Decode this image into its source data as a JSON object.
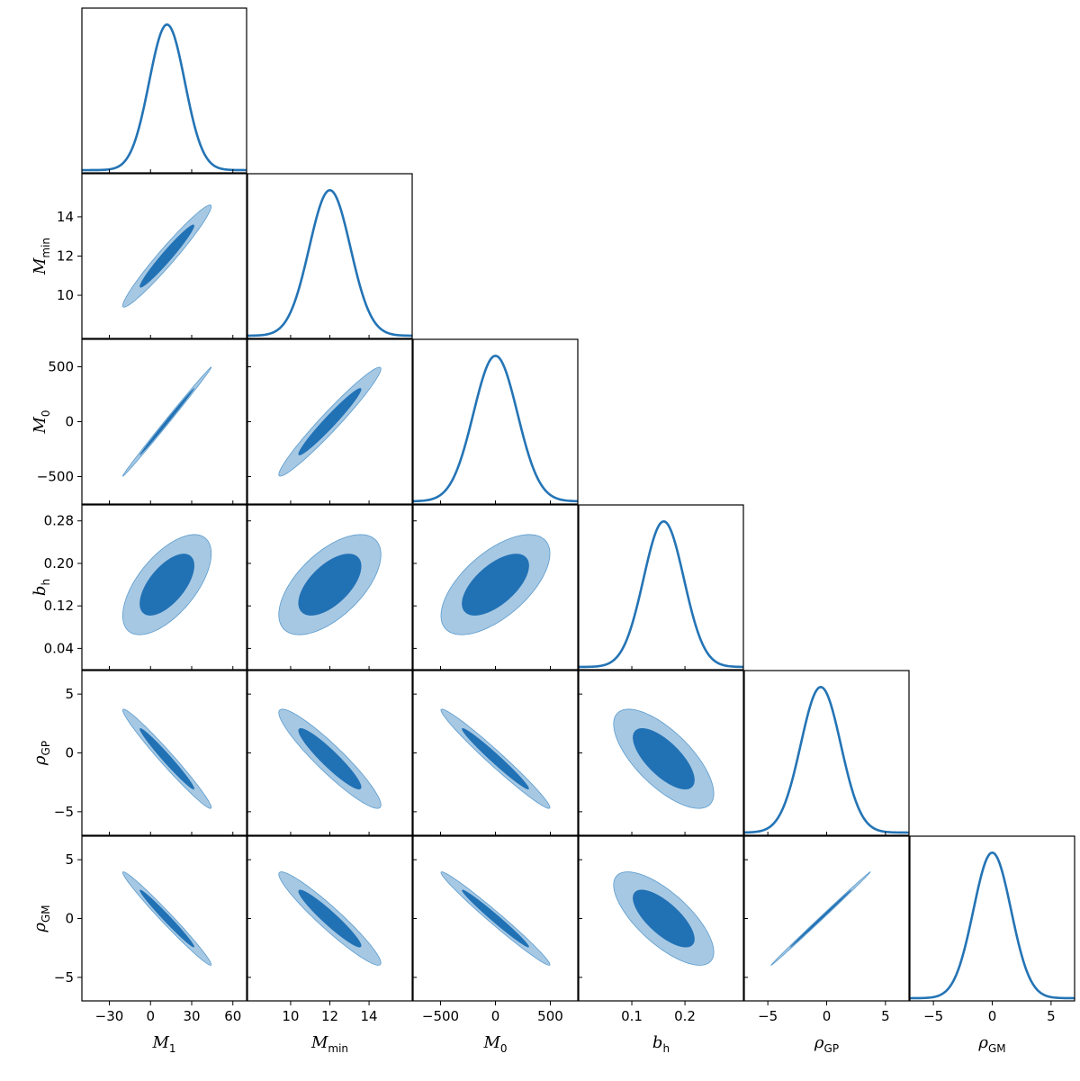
{
  "chart_data": {
    "type": "corner",
    "colors": {
      "line": "#2474b5",
      "inner": "#2171b5",
      "outer": "#a6c8e3",
      "outer_edge": "#5b9bcd",
      "frame": "#000000"
    },
    "parameters": [
      {
        "id": "M1",
        "label_main": "M",
        "label_sub": "1",
        "range": [
          -50,
          70
        ],
        "ticks": [
          -30,
          0,
          30,
          60
        ],
        "tick_labels": [
          "−30",
          "0",
          "30",
          "60"
        ],
        "mean": 12,
        "sigma": 13
      },
      {
        "id": "Mmin",
        "label_main": "M",
        "label_sub": "min",
        "range": [
          7.8,
          16.2
        ],
        "ticks": [
          10,
          12,
          14
        ],
        "tick_labels": [
          "10",
          "12",
          "14"
        ],
        "mean": 12,
        "sigma": 1.05
      },
      {
        "id": "M0",
        "label_main": "M",
        "label_sub": "0",
        "range": [
          -750,
          750
        ],
        "ticks": [
          -500,
          0,
          500
        ],
        "tick_labels": [
          "−500",
          "0",
          "500"
        ],
        "mean": 0,
        "sigma": 200
      },
      {
        "id": "bh",
        "label_main": "b",
        "label_sub": "h",
        "range": [
          0.0,
          0.31
        ],
        "ticks": [
          0.04,
          0.12,
          0.2,
          0.28
        ],
        "tick_labels": [
          "0.04",
          "0.12",
          "0.20",
          "0.28"
        ],
        "bottom_ticks": [
          0.1,
          0.2
        ],
        "bottom_tick_labels": [
          "0.1",
          "0.2"
        ],
        "mean": 0.16,
        "sigma": 0.038
      },
      {
        "id": "rhoGP",
        "label_main": "ρ",
        "label_sub": "GP",
        "range": [
          -7,
          7
        ],
        "ticks": [
          -5,
          0,
          5
        ],
        "tick_labels": [
          "−5",
          "0",
          "5"
        ],
        "mean": -0.5,
        "sigma": 1.7
      },
      {
        "id": "rhoGM",
        "label_main": "ρ",
        "label_sub": "GM",
        "range": [
          -7,
          7
        ],
        "ticks": [
          -5,
          0,
          5
        ],
        "tick_labels": [
          "−5",
          "0",
          "5"
        ],
        "mean": 0,
        "sigma": 1.6
      }
    ],
    "correlations": [
      [
        1,
        0.97,
        0.998,
        0.62,
        -0.98,
        -0.985
      ],
      [
        0.97,
        1,
        0.97,
        0.6,
        -0.93,
        -0.95
      ],
      [
        0.998,
        0.97,
        1,
        0.62,
        -0.98,
        -0.985
      ],
      [
        0.62,
        0.6,
        0.62,
        1,
        -0.7,
        -0.72
      ],
      [
        -0.98,
        -0.93,
        -0.98,
        -0.7,
        1,
        0.999
      ],
      [
        -0.985,
        -0.95,
        -0.985,
        -0.72,
        0.999,
        1
      ]
    ],
    "contour_levels_sigma": [
      1.52,
      2.48
    ],
    "grid": false,
    "legend": "none"
  }
}
